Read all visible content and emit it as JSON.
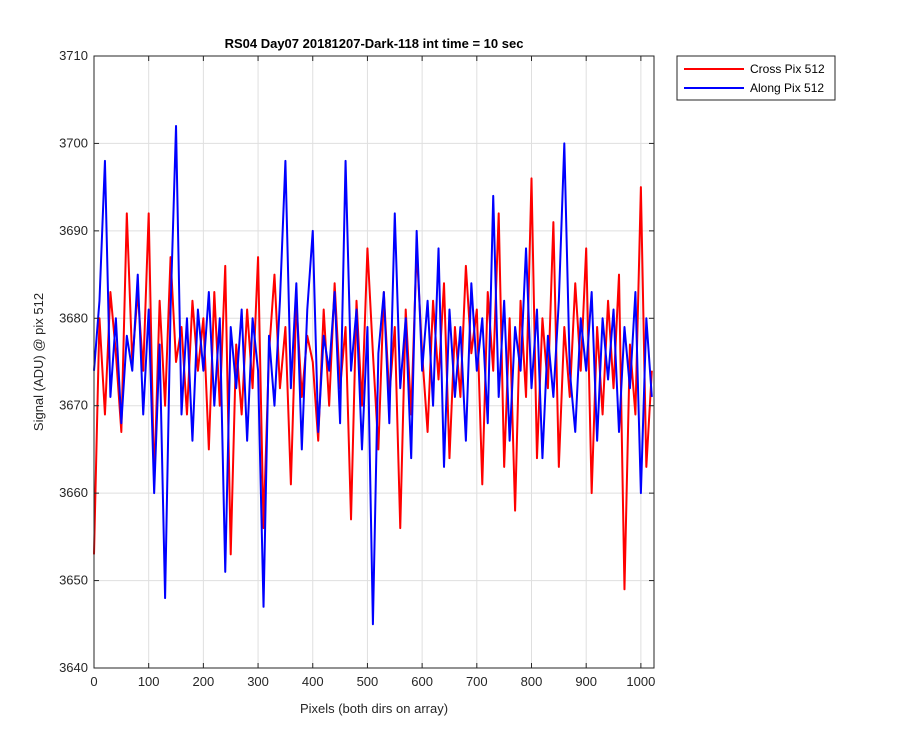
{
  "chart_data": {
    "type": "line",
    "title": "RS04 Day07 20181207-Dark-118 int time = 10 sec",
    "xlabel": "Pixels (both dirs on array)",
    "ylabel": "Signal (ADU) @ pix 512",
    "xlim": [
      0,
      1024
    ],
    "ylim": [
      3640,
      3710
    ],
    "xticks": [
      "0",
      "100",
      "200",
      "300",
      "400",
      "500",
      "600",
      "700",
      "800",
      "900",
      "1000"
    ],
    "yticks": [
      "3640",
      "3650",
      "3660",
      "3670",
      "3680",
      "3690",
      "3700",
      "3710"
    ],
    "grid": true,
    "legend_position": "outside-top-right",
    "series": [
      {
        "name": "Cross Pix 512",
        "color": "#ff0000",
        "x": [
          0,
          10,
          20,
          30,
          40,
          50,
          60,
          70,
          80,
          90,
          100,
          110,
          120,
          130,
          140,
          150,
          160,
          170,
          180,
          190,
          200,
          210,
          220,
          230,
          240,
          250,
          260,
          270,
          280,
          290,
          300,
          310,
          320,
          330,
          340,
          350,
          360,
          370,
          380,
          390,
          400,
          410,
          420,
          430,
          440,
          450,
          460,
          470,
          480,
          490,
          500,
          510,
          520,
          530,
          540,
          550,
          560,
          570,
          580,
          590,
          600,
          610,
          620,
          630,
          640,
          650,
          660,
          670,
          680,
          690,
          700,
          710,
          720,
          730,
          740,
          750,
          760,
          770,
          780,
          790,
          800,
          810,
          820,
          830,
          840,
          850,
          860,
          870,
          880,
          890,
          900,
          910,
          920,
          930,
          940,
          950,
          960,
          970,
          980,
          990,
          1000,
          1010,
          1020
        ],
        "values": [
          3653,
          3680,
          3669,
          3683,
          3676,
          3667,
          3692,
          3675,
          3683,
          3674,
          3692,
          3661,
          3682,
          3670,
          3687,
          3675,
          3679,
          3669,
          3682,
          3674,
          3680,
          3665,
          3683,
          3670,
          3686,
          3653,
          3677,
          3669,
          3681,
          3672,
          3687,
          3656,
          3676,
          3685,
          3672,
          3679,
          3661,
          3682,
          3671,
          3678,
          3675,
          3666,
          3681,
          3670,
          3684,
          3672,
          3679,
          3657,
          3682,
          3670,
          3688,
          3676,
          3665,
          3683,
          3671,
          3679,
          3656,
          3681,
          3669,
          3688,
          3676,
          3667,
          3682,
          3673,
          3684,
          3664,
          3679,
          3671,
          3686,
          3676,
          3681,
          3661,
          3683,
          3674,
          3692,
          3663,
          3680,
          3658,
          3682,
          3671,
          3696,
          3664,
          3680,
          3672,
          3691,
          3663,
          3679,
          3671,
          3684,
          3674,
          3688,
          3660,
          3679,
          3669,
          3682,
          3672,
          3685,
          3649,
          3677,
          3669,
          3695,
          3663,
          3674
        ]
      },
      {
        "name": "Along Pix 512",
        "color": "#0000ff",
        "x": [
          0,
          10,
          20,
          30,
          40,
          50,
          60,
          70,
          80,
          90,
          100,
          110,
          120,
          130,
          140,
          150,
          160,
          170,
          180,
          190,
          200,
          210,
          220,
          230,
          240,
          250,
          260,
          270,
          280,
          290,
          300,
          310,
          320,
          330,
          340,
          350,
          360,
          370,
          380,
          390,
          400,
          410,
          420,
          430,
          440,
          450,
          460,
          470,
          480,
          490,
          500,
          510,
          520,
          530,
          540,
          550,
          560,
          570,
          580,
          590,
          600,
          610,
          620,
          630,
          640,
          650,
          660,
          670,
          680,
          690,
          700,
          710,
          720,
          730,
          740,
          750,
          760,
          770,
          780,
          790,
          800,
          810,
          820,
          830,
          840,
          850,
          860,
          870,
          880,
          890,
          900,
          910,
          920,
          930,
          940,
          950,
          960,
          970,
          980,
          990,
          1000,
          1010,
          1020
        ],
        "values": [
          3674,
          3682,
          3698,
          3671,
          3680,
          3668,
          3678,
          3674,
          3685,
          3669,
          3681,
          3660,
          3677,
          3648,
          3681,
          3702,
          3669,
          3680,
          3666,
          3681,
          3674,
          3683,
          3670,
          3680,
          3651,
          3679,
          3672,
          3681,
          3666,
          3680,
          3674,
          3647,
          3678,
          3670,
          3682,
          3698,
          3672,
          3684,
          3665,
          3681,
          3690,
          3667,
          3678,
          3674,
          3683,
          3668,
          3698,
          3674,
          3681,
          3665,
          3679,
          3645,
          3676,
          3683,
          3668,
          3692,
          3672,
          3680,
          3664,
          3690,
          3674,
          3682,
          3670,
          3688,
          3663,
          3681,
          3671,
          3679,
          3666,
          3684,
          3674,
          3680,
          3668,
          3694,
          3671,
          3682,
          3666,
          3679,
          3674,
          3688,
          3672,
          3681,
          3664,
          3678,
          3671,
          3682,
          3700,
          3674,
          3667,
          3680,
          3674,
          3683,
          3666,
          3680,
          3673,
          3681,
          3667,
          3679,
          3672,
          3683,
          3660,
          3680,
          3671
        ]
      }
    ]
  }
}
